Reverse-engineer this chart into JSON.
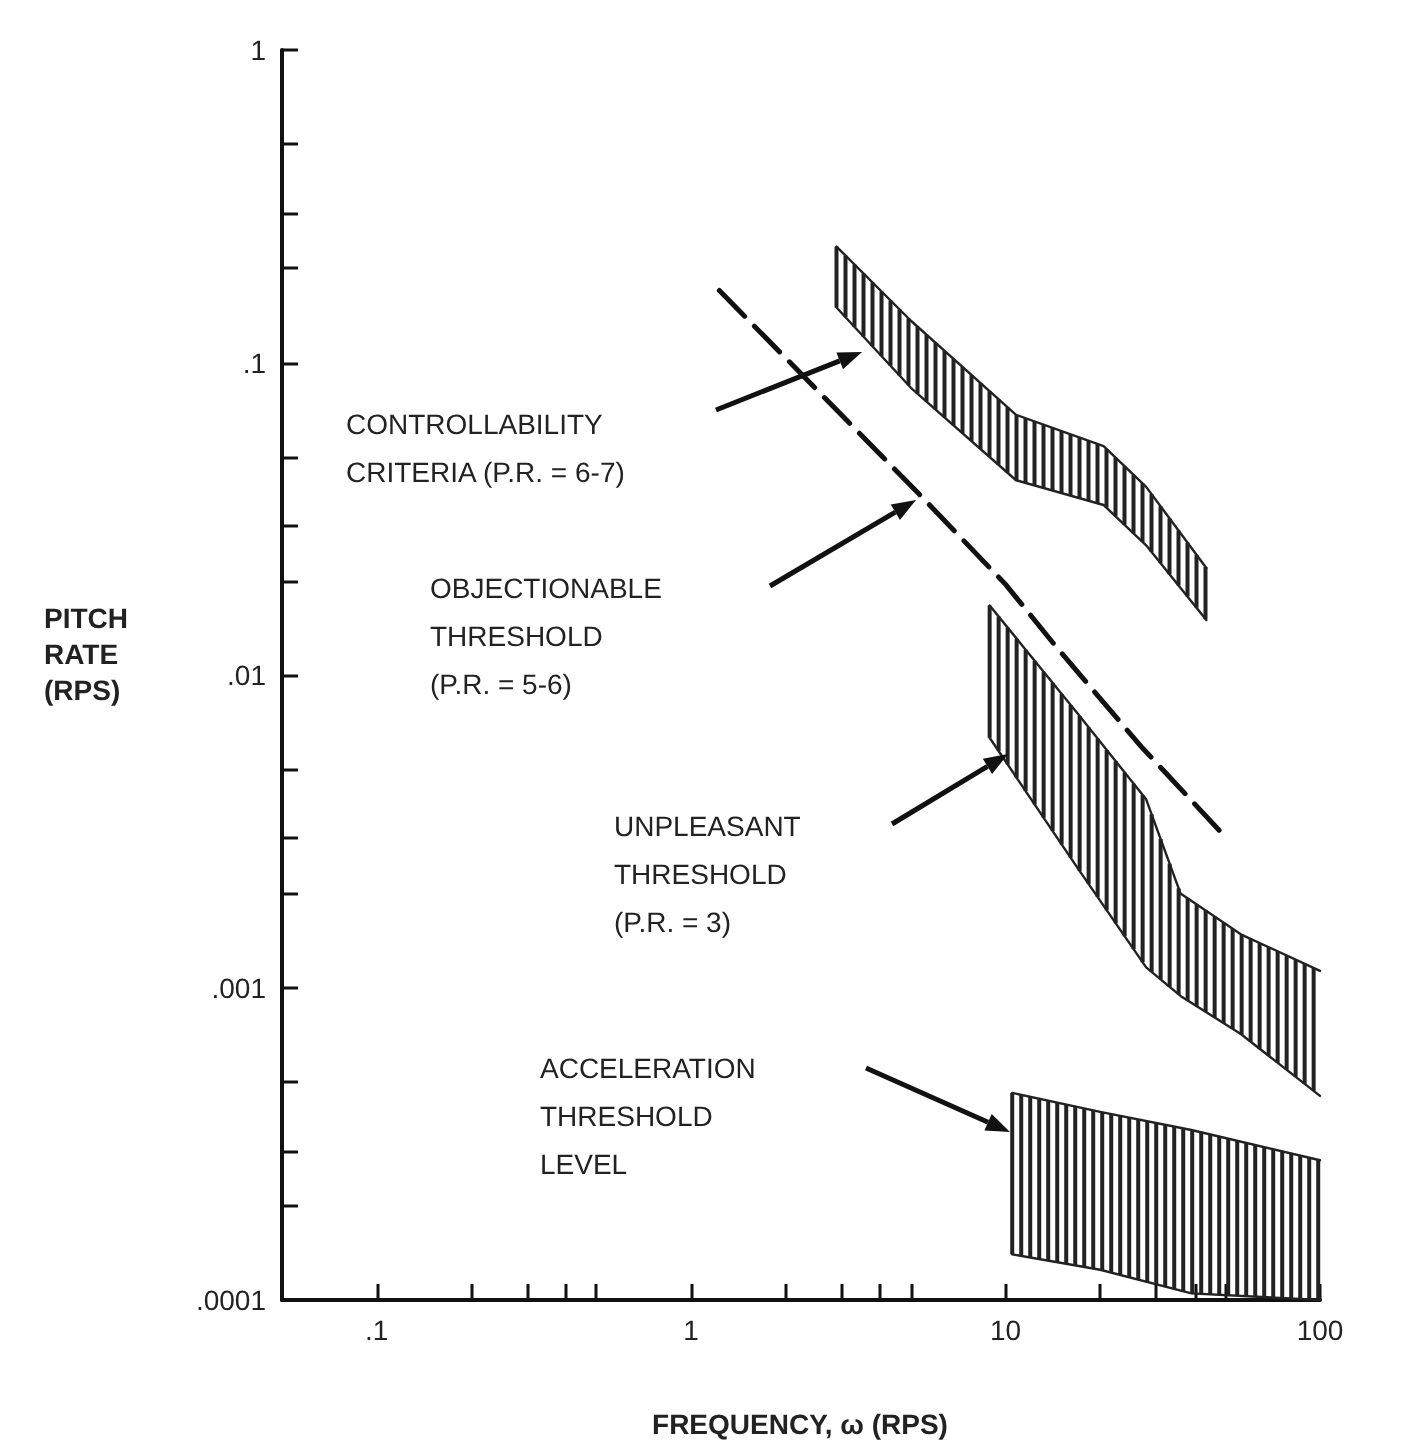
{
  "chart_data": {
    "type": "line",
    "xlabel": "FREQUENCY, ω (RPS)",
    "ylabel": "PITCH\nRATE\n(RPS)",
    "log": "xy",
    "xlim": [
      0.05,
      100
    ],
    "ylim": [
      0.0001,
      1
    ],
    "xticks": [
      {
        "value": 0.1,
        "label": ".1"
      },
      {
        "value": 0.2,
        "label": null
      },
      {
        "value": 0.3,
        "label": null
      },
      {
        "value": 0.4,
        "label": null
      },
      {
        "value": 0.5,
        "label": null
      },
      1,
      {
        "value": 2,
        "label": null
      },
      {
        "value": 3,
        "label": null
      },
      {
        "value": 4,
        "label": null
      },
      {
        "value": 5,
        "label": null
      },
      10,
      {
        "value": 20,
        "label": null
      },
      {
        "value": 30,
        "label": null
      },
      {
        "value": 40,
        "label": null
      },
      {
        "value": 50,
        "label": null
      },
      100
    ],
    "yticks": [
      {
        "value": 0.0001,
        "label": ".0001"
      },
      {
        "value": 0.0002,
        "label": null
      },
      {
        "value": 0.0003,
        "label": null
      },
      {
        "value": 0.0005,
        "label": null
      },
      {
        "value": 0.001,
        "label": ".001"
      },
      {
        "value": 0.002,
        "label": null
      },
      {
        "value": 0.003,
        "label": null
      },
      {
        "value": 0.005,
        "label": null
      },
      {
        "value": 0.01,
        "label": ".01"
      },
      {
        "value": 0.02,
        "label": null
      },
      {
        "value": 0.03,
        "label": null
      },
      {
        "value": 0.05,
        "label": null
      },
      {
        "value": 0.1,
        "label": ".1"
      },
      {
        "value": 0.2,
        "label": null
      },
      {
        "value": 0.3,
        "label": null
      },
      {
        "value": 0.5,
        "label": null
      },
      1
    ],
    "series": [
      {
        "color": "#222222",
        "x": [
          2.9,
          5,
          10.8,
          20.5,
          28,
          43.5
        ],
        "values": [
          0.235,
          0.136,
          0.068,
          0.054,
          0.04,
          0.022
        ]
      },
      {
        "color": "#222222",
        "x": [
          2.9,
          5,
          10.8,
          20.5,
          28,
          43.5
        ],
        "values": [
          0.15,
          0.083,
          0.042,
          0.035,
          0.026,
          0.015
        ]
      },
      {
        "color": "#111111",
        "line_style": "dashed",
        "x": [
          1.23,
          5.3,
          10,
          14.5,
          27,
          49
        ],
        "values": [
          0.17,
          0.038,
          0.0195,
          0.0123,
          0.0059,
          0.0031
        ]
      },
      {
        "color": "#222222",
        "x": [
          8.9,
          17,
          28,
          36,
          56,
          100
        ],
        "values": [
          0.0167,
          0.0075,
          0.004,
          0.002,
          0.00148,
          0.00113
        ]
      },
      {
        "color": "#222222",
        "x": [
          8.9,
          17,
          28,
          36,
          56,
          100
        ],
        "values": [
          0.0063,
          0.0024,
          0.00116,
          0.00094,
          0.00071,
          0.00045
        ]
      },
      {
        "color": "#222222",
        "x": [
          10.5,
          20,
          39,
          100
        ],
        "values": [
          0.00046,
          0.0004,
          0.00035,
          0.00028
        ]
      },
      {
        "color": "#222222",
        "x": [
          10.5,
          20,
          39,
          100
        ],
        "values": [
          0.00014,
          0.000125,
          0.000105,
          0.0001
        ]
      }
    ],
    "annotations": [
      "CONTROLLABILITY\nCRITERIA (P.R. = 6-7)",
      "OBJECTIONABLE\nTHRESHOLD\n(P.R. = 5-6)",
      "UNPLEASANT\nTHRESHOLD\n(P.R. = 3)",
      "ACCELERATION\nTHRESHOLD\nLEVEL"
    ]
  }
}
